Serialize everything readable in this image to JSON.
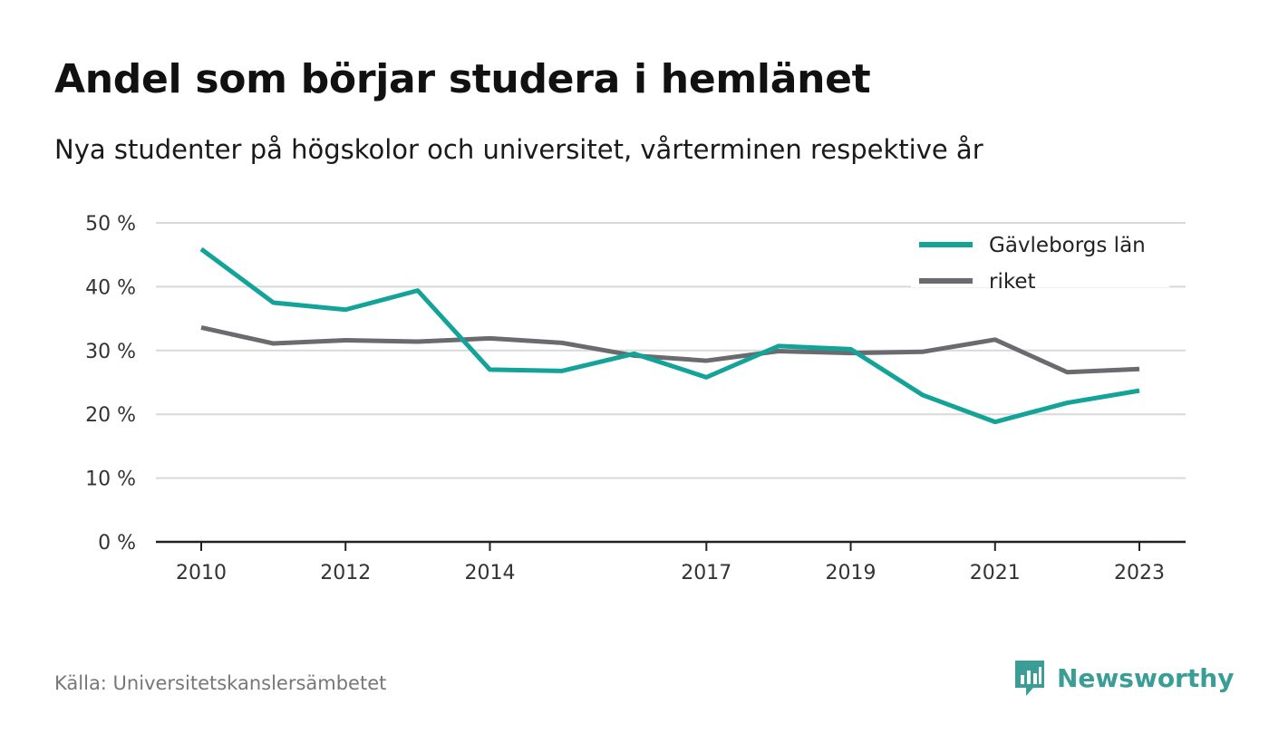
{
  "header": {
    "title": "Andel som börjar studera i hemlänet",
    "subtitle": "Nya studenter på högskolor och universitet, vårterminen respektive år"
  },
  "footer": {
    "source": "Källa: Universitetskanslersämbetet",
    "brand": "Newsworthy",
    "brand_icon": "newsworthy-logo-icon"
  },
  "colors": {
    "series_region": "#13a398",
    "series_nation": "#6b6b6f",
    "grid": "#d9d9d9",
    "axis": "#222222",
    "brand": "#3a9d96"
  },
  "chart_data": {
    "type": "line",
    "x": [
      2010,
      2011,
      2012,
      2013,
      2014,
      2015,
      2016,
      2017,
      2018,
      2019,
      2020,
      2021,
      2022,
      2023
    ],
    "x_tick_labels": [
      "2010",
      "2012",
      "2014",
      "2017",
      "2019",
      "2021",
      "2023"
    ],
    "y_tick_labels": [
      "0 %",
      "10 %",
      "20 %",
      "30 %",
      "40 %",
      "50 %"
    ],
    "ylim": [
      0,
      50
    ],
    "grid": true,
    "legend_position": "top-right",
    "series": [
      {
        "name": "Gävleborgs län",
        "color": "#13a398",
        "values": [
          45.9,
          37.5,
          36.4,
          39.4,
          27.0,
          26.8,
          29.5,
          25.8,
          30.7,
          30.2,
          23.0,
          18.8,
          21.8,
          23.7
        ]
      },
      {
        "name": "riket",
        "color": "#6b6b6f",
        "values": [
          33.6,
          31.1,
          31.6,
          31.4,
          31.9,
          31.2,
          29.2,
          28.4,
          29.9,
          29.6,
          29.8,
          31.7,
          26.6,
          27.1
        ]
      }
    ]
  }
}
